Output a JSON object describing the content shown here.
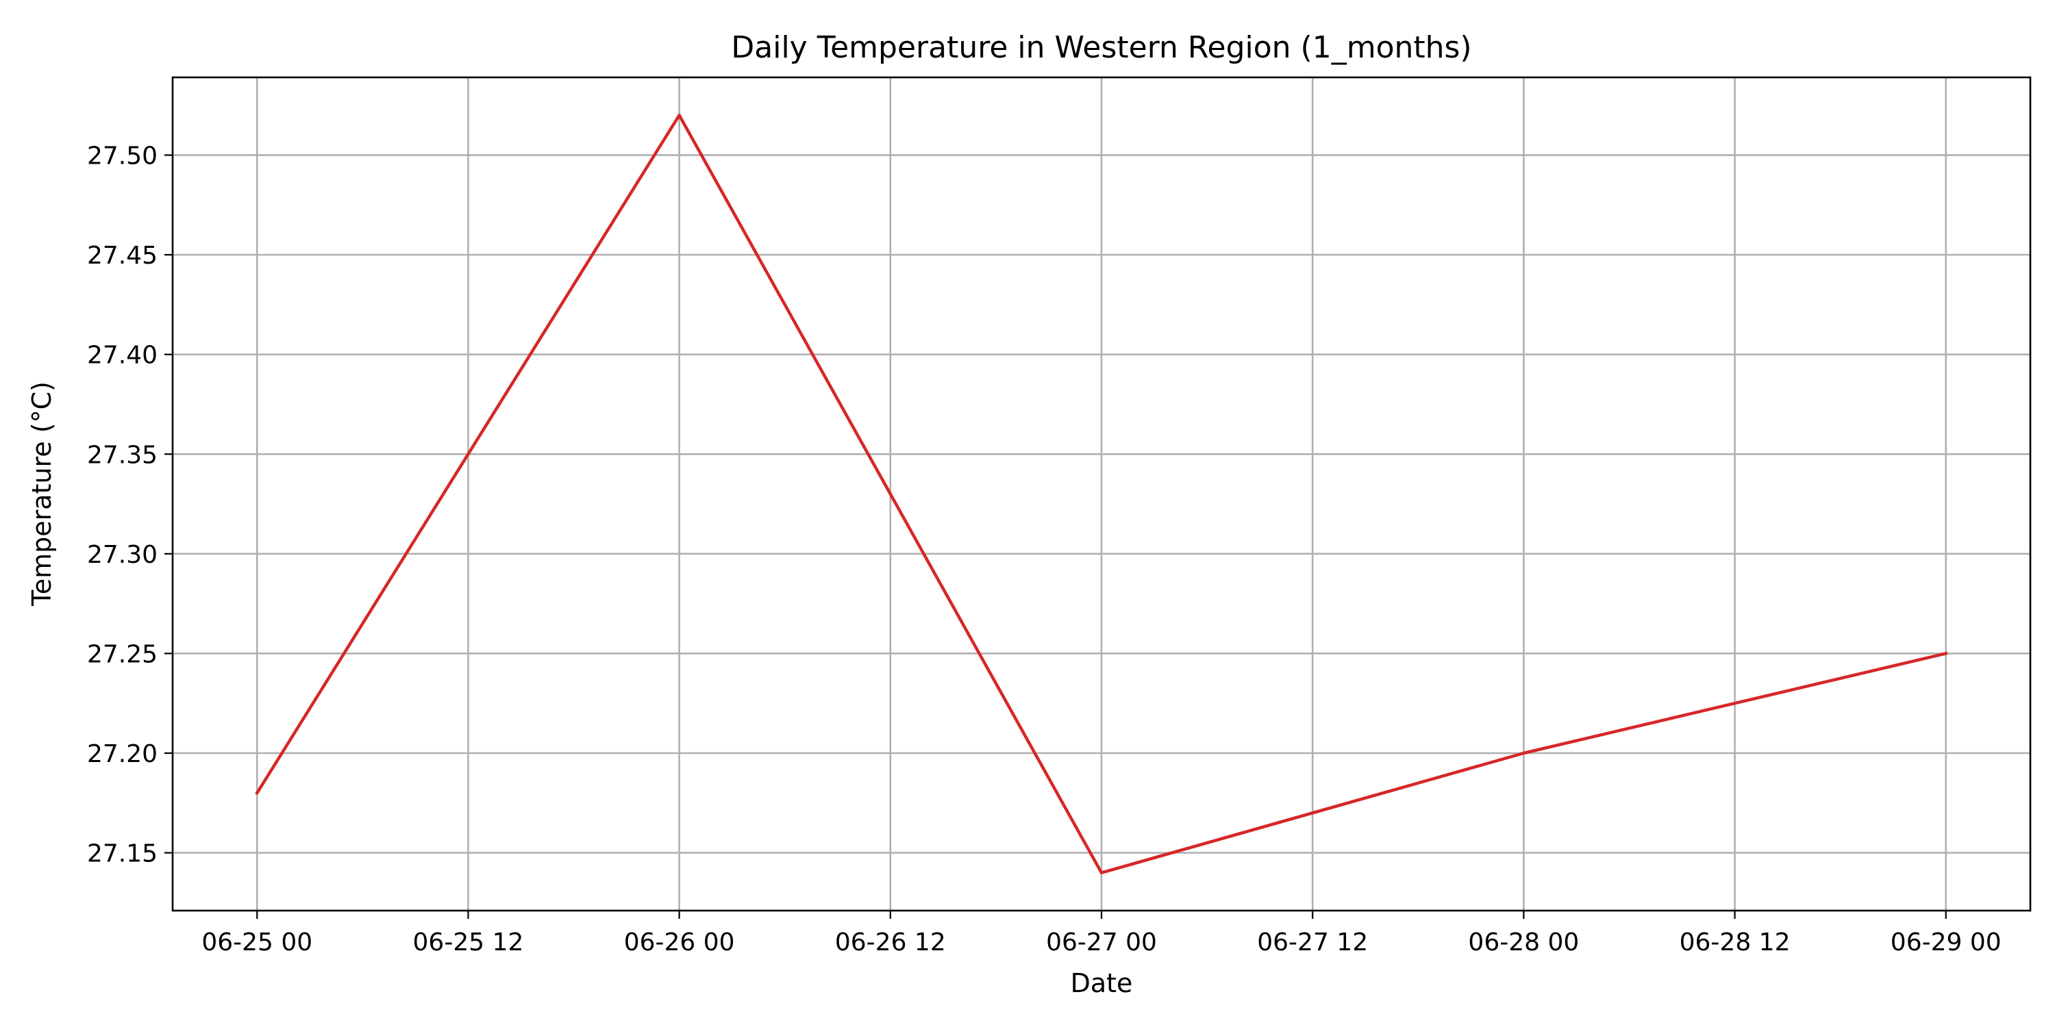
{
  "chart_data": {
    "type": "line",
    "title": "Daily Temperature in Western Region (1_months)",
    "xlabel": "Date",
    "ylabel": "Temperature (°C)",
    "x": [
      "2024-06-25",
      "2024-06-26",
      "2024-06-27",
      "2024-06-28",
      "2024-06-29"
    ],
    "series": [
      {
        "values": [
          27.18,
          27.52,
          27.14,
          27.2,
          27.25
        ],
        "color": "#d62728"
      }
    ],
    "x_ticks": [
      {
        "value": "2024-06-25 00:00",
        "label": "06-25 00"
      },
      {
        "value": "2024-06-25 12:00",
        "label": "06-25 12"
      },
      {
        "value": "2024-06-26 00:00",
        "label": "06-26 00"
      },
      {
        "value": "2024-06-26 12:00",
        "label": "06-26 12"
      },
      {
        "value": "2024-06-27 00:00",
        "label": "06-27 00"
      },
      {
        "value": "2024-06-27 12:00",
        "label": "06-27 12"
      },
      {
        "value": "2024-06-28 00:00",
        "label": "06-28 00"
      },
      {
        "value": "2024-06-28 12:00",
        "label": "06-28 12"
      },
      {
        "value": "2024-06-29 00:00",
        "label": "06-29 00"
      }
    ],
    "y_ticks": [
      27.15,
      27.2,
      27.25,
      27.3,
      27.35,
      27.4,
      27.45,
      27.5
    ],
    "xlim": [
      "2024-06-24 19:12",
      "2024-06-29 04:48"
    ],
    "ylim": [
      27.121,
      27.539
    ],
    "grid": true,
    "grid_color": "#b0b0b0"
  }
}
